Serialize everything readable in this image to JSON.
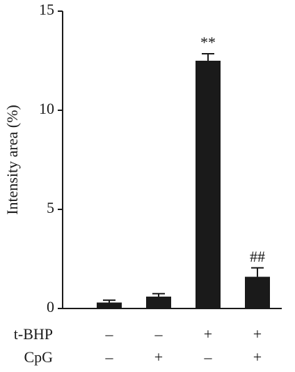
{
  "chart_data": {
    "type": "bar",
    "y_label": "Intensity area (%)",
    "values": [
      0.3,
      0.6,
      12.5,
      1.6
    ],
    "errors": [
      0.12,
      0.15,
      0.35,
      0.45
    ],
    "value_annotations": [
      null,
      null,
      "**",
      "##"
    ],
    "color": "#1a1a1a",
    "ylim": [
      0,
      15
    ],
    "yticks": [
      0,
      5,
      10,
      15
    ],
    "conditions": [
      {
        "name": "t-BHP",
        "values": [
          "–",
          "–",
          "+",
          "+"
        ]
      },
      {
        "name": "CpG",
        "values": [
          "–",
          "+",
          "–",
          "+"
        ]
      }
    ]
  }
}
